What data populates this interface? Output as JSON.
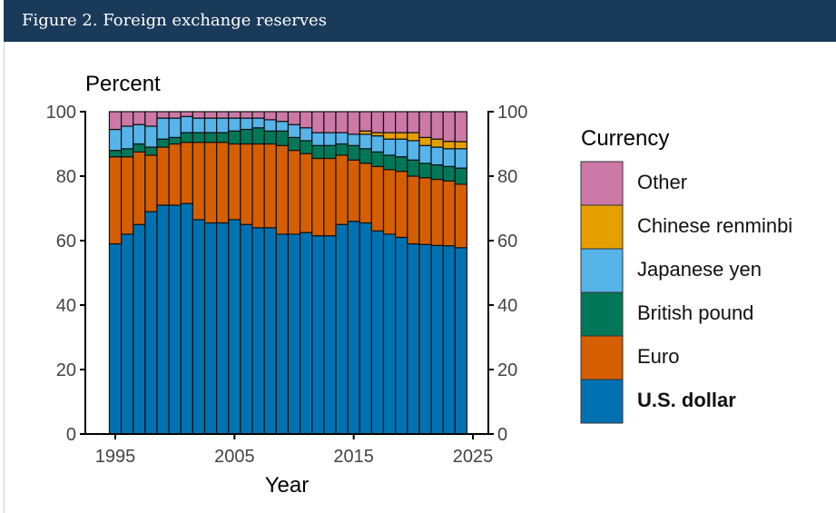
{
  "header": {
    "title": "Figure 2. Foreign exchange reserves"
  },
  "chart_data": {
    "type": "bar",
    "stacked": true,
    "title": "Figure 2. Foreign exchange reserves",
    "ylabel": "Percent",
    "xlabel": "Year",
    "ylim": [
      0,
      100
    ],
    "xlim": [
      1993,
      2026
    ],
    "yticks": [
      0,
      20,
      40,
      60,
      80,
      100
    ],
    "ytick_labels": [
      "0",
      "20",
      "40",
      "60",
      "80",
      "100"
    ],
    "xticks": [
      1995,
      2005,
      2015,
      2025
    ],
    "xtick_labels": [
      "1995",
      "2005",
      "2015",
      "2025"
    ],
    "legend_title": "Currency",
    "legend_position": "right",
    "categories": [
      1995,
      1996,
      1997,
      1998,
      1999,
      2000,
      2001,
      2002,
      2003,
      2004,
      2005,
      2006,
      2007,
      2008,
      2009,
      2010,
      2011,
      2012,
      2013,
      2014,
      2015,
      2016,
      2017,
      2018,
      2019,
      2020,
      2021,
      2022,
      2023,
      2024
    ],
    "series": [
      {
        "name": "U.S. dollar",
        "color": "#0072b2",
        "values": [
          59,
          62,
          65,
          69,
          71,
          71,
          71.5,
          66.5,
          65.5,
          65.5,
          66.5,
          65,
          64,
          64,
          62,
          62,
          62.5,
          61.5,
          61.5,
          65,
          66,
          65.5,
          63,
          62,
          61,
          59,
          58.8,
          58.5,
          58.4,
          57.8
        ]
      },
      {
        "name": "Euro",
        "color": "#d55e00",
        "values": [
          27,
          24,
          22.5,
          17.5,
          18,
          19,
          19,
          24,
          25,
          25,
          23.5,
          25,
          26,
          26,
          27.5,
          26,
          24.5,
          24,
          24,
          21.5,
          19,
          18.5,
          20,
          20,
          20.5,
          21,
          20.7,
          20.5,
          20.1,
          19.7
        ]
      },
      {
        "name": "British pound",
        "color": "#007858",
        "values": [
          2,
          2.5,
          2.5,
          2.5,
          2.5,
          2,
          3,
          3,
          3,
          3,
          4,
          4.5,
          5,
          4,
          4.5,
          4,
          4,
          4,
          4,
          3.5,
          4.5,
          4.5,
          4.5,
          4.5,
          4.5,
          5,
          4.5,
          4.5,
          4.5,
          5
        ]
      },
      {
        "name": "Japanese yen",
        "color": "#56b4e9",
        "values": [
          6.5,
          7,
          6,
          6.5,
          6.5,
          6,
          5,
          4.5,
          4.5,
          4.5,
          4,
          3.5,
          3,
          3.5,
          3,
          4,
          4,
          4,
          4,
          3.5,
          3.5,
          4.5,
          5,
          5,
          5.5,
          6,
          5.5,
          5.5,
          5.5,
          6
        ]
      },
      {
        "name": "Chinese renminbi",
        "color": "#e69f00",
        "values": [
          0,
          0,
          0,
          0,
          0,
          0,
          0,
          0,
          0,
          0,
          0,
          0,
          0,
          0,
          0,
          0,
          0,
          0,
          0,
          0,
          0,
          1,
          1,
          2,
          2,
          2.5,
          2.5,
          2.5,
          2.3,
          2.2
        ]
      },
      {
        "name": "Other",
        "color": "#cc79a7",
        "values": [
          5.5,
          4.5,
          4,
          4.5,
          2,
          2,
          1.5,
          2,
          2,
          2,
          2,
          2,
          2,
          2.5,
          3,
          4,
          5,
          6.5,
          6.5,
          6.5,
          7,
          6,
          6.5,
          6.5,
          6.5,
          6.5,
          8,
          8.5,
          9.2,
          9.3
        ]
      }
    ]
  }
}
